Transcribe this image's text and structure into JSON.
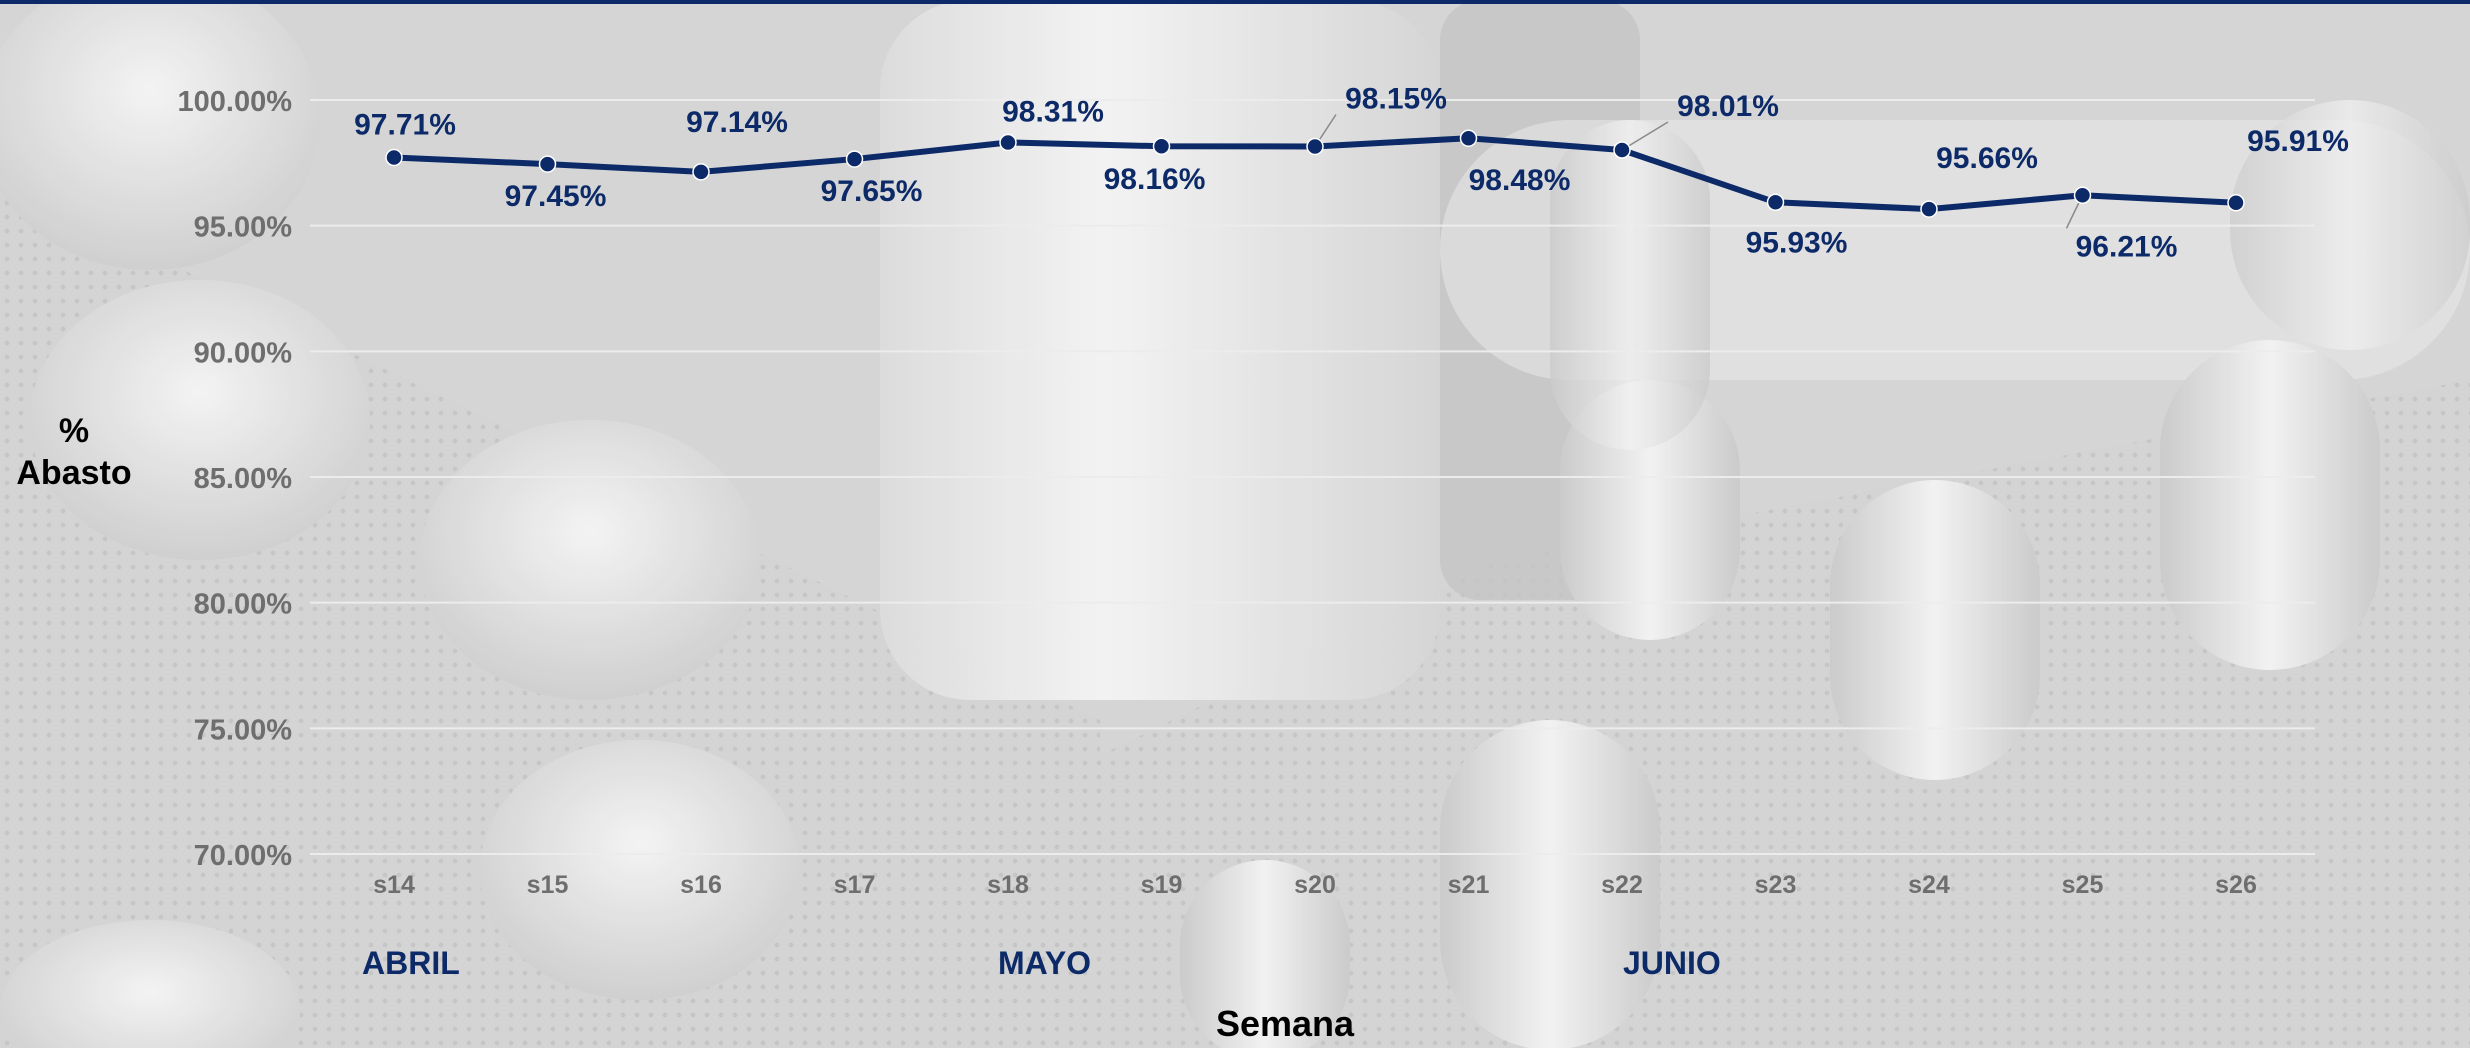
{
  "chart_data": {
    "type": "line",
    "xlabel": "Semana",
    "ylabel_lines": [
      "%",
      "Abasto"
    ],
    "categories": [
      "s14",
      "s15",
      "s16",
      "s17",
      "s18",
      "s19",
      "s20",
      "s21",
      "s22",
      "s23",
      "s24",
      "s25",
      "s26"
    ],
    "series": [
      {
        "values": [
          97.71,
          97.45,
          97.14,
          97.65,
          98.31,
          98.16,
          98.15,
          98.48,
          98.01,
          95.93,
          95.66,
          96.21,
          95.91
        ]
      }
    ],
    "value_labels": [
      "97.71%",
      "97.45%",
      "97.14%",
      "97.65%",
      "98.31%",
      "98.16%",
      "98.15%",
      "98.48%",
      "98.01%",
      "95.93%",
      "95.66%",
      "96.21%",
      "95.91%"
    ],
    "ylim": [
      70,
      100
    ],
    "yticks": [
      70,
      75,
      80,
      85,
      90,
      95,
      100
    ],
    "ytick_labels": [
      "70.00%",
      "75.00%",
      "80.00%",
      "85.00%",
      "90.00%",
      "95.00%",
      "100.00%"
    ],
    "grid": true,
    "months": [
      {
        "label": "ABRIL",
        "category": "s14"
      },
      {
        "label": "MAYO",
        "category": "s18"
      },
      {
        "label": "JUNIO",
        "category": "s22"
      }
    ],
    "colors": {
      "line": "#0d2a68",
      "ticks": "#6e6e6e",
      "grid": "#ececec",
      "label": "#0d2a68",
      "background": "#d2d2d2"
    },
    "background_image": "pharmaceutical-pills-photo"
  }
}
